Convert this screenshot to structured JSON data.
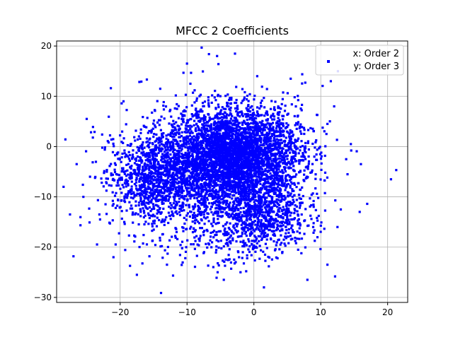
{
  "chart_data": {
    "type": "scatter",
    "title": "MFCC 2 Coefficients",
    "xlabel": "",
    "ylabel": "",
    "xlim": [
      -29.5,
      23.0
    ],
    "ylim": [
      -31.0,
      21.0
    ],
    "xticks": [
      -20,
      -10,
      0,
      10,
      20
    ],
    "yticks": [
      -30,
      -20,
      -10,
      0,
      10,
      20
    ],
    "grid": true,
    "legend": {
      "placement": "top-right",
      "entries": [
        "x: Order 2",
        "y: Order 3"
      ]
    },
    "series": [
      {
        "color": "#0000ff",
        "marker": "square",
        "clusters": [
          {
            "cx": -3.0,
            "cy": -1.5,
            "sx": 5.0,
            "sy": 4.5,
            "count": 3600
          },
          {
            "cx": -15.5,
            "cy": -6.0,
            "sx": 2.8,
            "sy": 3.5,
            "count": 650
          },
          {
            "cx": 1.0,
            "cy": -13.5,
            "sx": 3.5,
            "sy": 3.8,
            "count": 800
          },
          {
            "cx": -8.0,
            "cy": -8.0,
            "sx": 6.5,
            "sy": 6.5,
            "count": 1200
          },
          {
            "cx": -6.0,
            "cy": -4.0,
            "sx": 10.0,
            "sy": 9.0,
            "count": 300
          }
        ],
        "outliers": [
          [
            20.5,
            -6.5
          ],
          [
            -27.5,
            -13.5
          ],
          [
            -26.5,
            -3.5
          ],
          [
            -25.0,
            5.5
          ],
          [
            -24.5,
            -6.0
          ],
          [
            -23.0,
            -14.5
          ],
          [
            -21.0,
            -22.0
          ],
          [
            -17.5,
            -25.5
          ],
          [
            -13.0,
            -23.5
          ],
          [
            -5.5,
            18.0
          ],
          [
            -10.0,
            16.5
          ],
          [
            -9.5,
            12.5
          ],
          [
            11.0,
            -23.5
          ],
          [
            13.0,
            -12.5
          ],
          [
            12.5,
            -16.0
          ],
          [
            16.0,
            -3.5
          ],
          [
            14.5,
            0.5
          ],
          [
            14.0,
            -5.5
          ],
          [
            11.5,
            13.0
          ],
          [
            -22.0,
            -5.0
          ],
          [
            -19.5,
            9.0
          ],
          [
            -25.5,
            -10.0
          ],
          [
            -4.5,
            -26.5
          ],
          [
            1.5,
            -28.0
          ],
          [
            8.0,
            -26.5
          ],
          [
            -2.0,
            -25.0
          ],
          [
            0.5,
            14.0
          ],
          [
            5.5,
            13.5
          ],
          [
            -14.0,
            11.5
          ],
          [
            12.0,
            8.0
          ]
        ]
      }
    ]
  }
}
